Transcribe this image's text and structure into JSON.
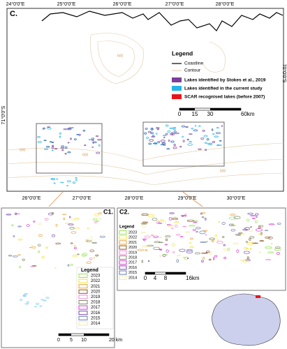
{
  "main_map": {
    "label": "C.",
    "top_lon_labels": [
      "24°0'0\"E",
      "25°0'0\"E",
      "26°0'0\"E",
      "27°0'0\"E",
      "28°0'0\"E"
    ],
    "bottom_lon_labels": [
      "26°0'0\"E",
      "27°0'0\"E",
      "28°0'0\"E",
      "29°0'0\"E",
      "30°0'0\"E"
    ],
    "left_lat_label": "71°0'0\"S",
    "right_lat_label": "70°0'0\"S",
    "contour_labels": [
      "600",
      "600",
      "600",
      "600"
    ],
    "legend": {
      "title": "Legend",
      "items": [
        "Coastline",
        "Contour",
        "Lakes identified by Stokes et al., 2019",
        "Lakes identified in the current study",
        "SCAR recognised lakes (before 2007)"
      ]
    },
    "scale": [
      "0",
      "15",
      "30",
      "60km"
    ]
  },
  "panel_c1": {
    "label": "C1.",
    "legend": {
      "title": "Legend",
      "items": [
        "2023",
        "2022",
        "2021",
        "2020",
        "2019",
        "2018",
        "2017",
        "2016",
        "2015",
        "2014"
      ]
    },
    "scale": [
      "0",
      "5",
      "10",
      "20 km"
    ]
  },
  "panel_c2": {
    "label": "C2.",
    "legend": {
      "title": "Legend",
      "items": [
        "2023",
        "2022",
        "2021",
        "2020",
        "2019",
        "2018",
        "2017",
        "2016",
        "2015",
        "2014"
      ]
    },
    "scale": [
      "0",
      "4",
      "8",
      "16km"
    ]
  }
}
